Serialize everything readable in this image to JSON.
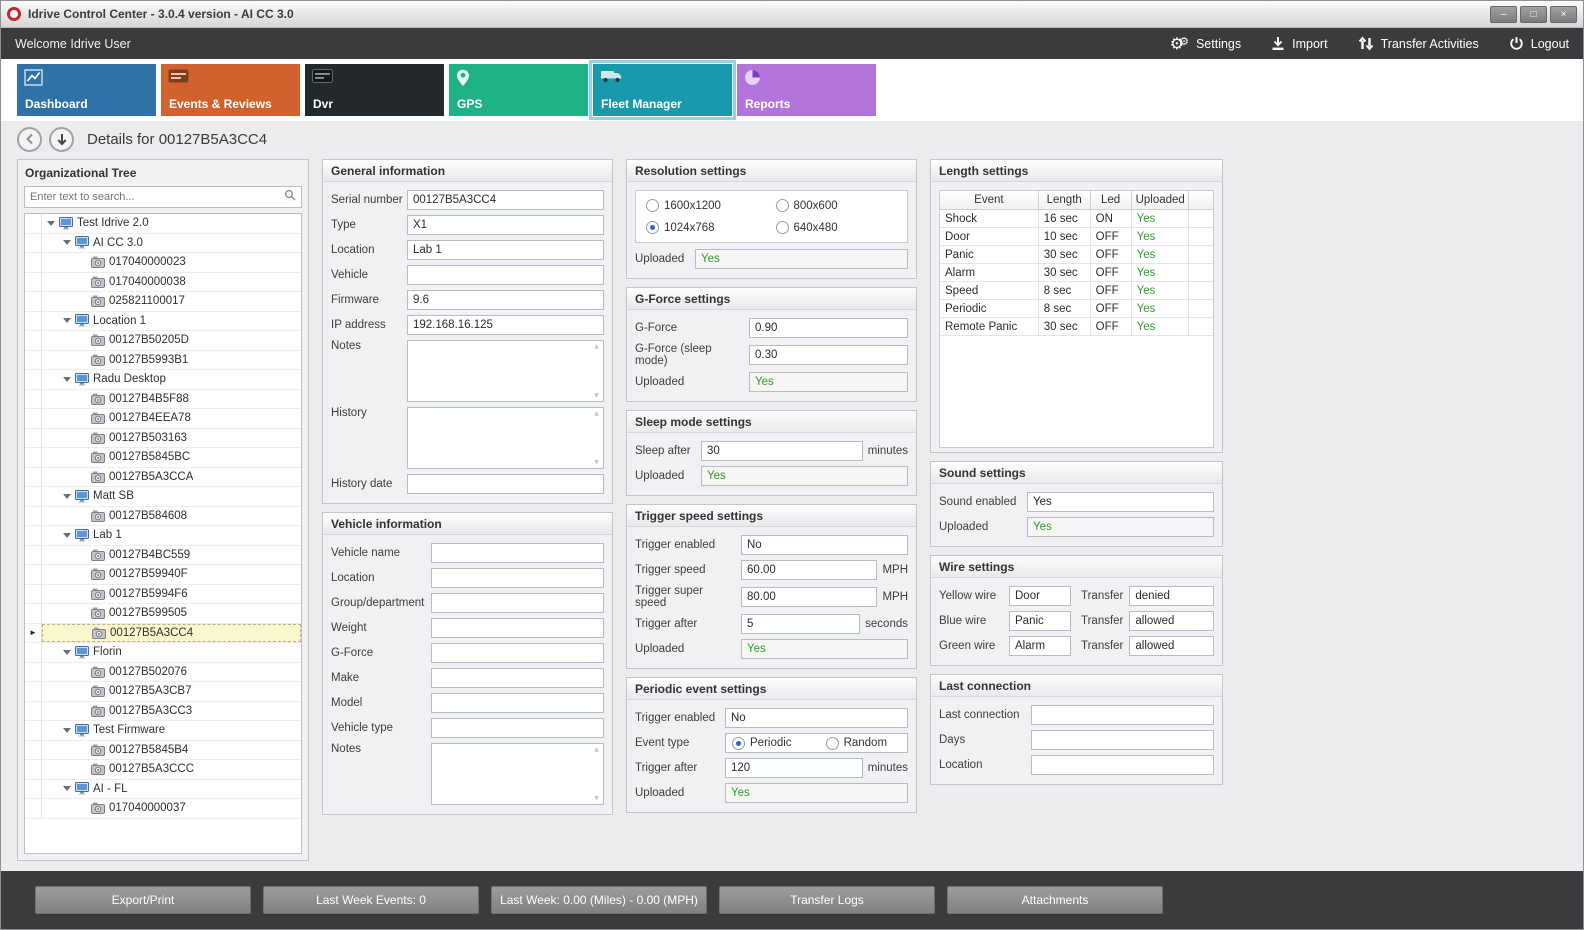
{
  "window": {
    "title": "Idrive Control Center - 3.0.4 version - AI CC 3.0",
    "controls": {
      "minimize": "–",
      "maximize": "□",
      "close": "×"
    }
  },
  "toolbar": {
    "welcome": "Welcome Idrive User",
    "actions": [
      {
        "id": "settings",
        "label": "Settings",
        "icon": "gears-icon"
      },
      {
        "id": "import",
        "label": "Import",
        "icon": "import-icon"
      },
      {
        "id": "transfer",
        "label": "Transfer Activities",
        "icon": "transfer-arrows-icon"
      },
      {
        "id": "logout",
        "label": "Logout",
        "icon": "power-icon"
      }
    ]
  },
  "tabs": [
    {
      "id": "dashboard",
      "label": "Dashboard",
      "color": "#2f72a8",
      "icon": "dashboard-chart-icon",
      "selected": false
    },
    {
      "id": "events",
      "label": "Events & Reviews",
      "color": "#d2622d",
      "icon": "events-icon",
      "selected": false
    },
    {
      "id": "dvr",
      "label": "Dvr",
      "color": "#23282c",
      "icon": "dvr-icon",
      "selected": false
    },
    {
      "id": "gps",
      "label": "GPS",
      "color": "#1fb286",
      "icon": "gps-pin-icon",
      "selected": false
    },
    {
      "id": "fleet",
      "label": "Fleet Manager",
      "color": "#1899ac",
      "icon": "fleet-truck-icon",
      "selected": true
    },
    {
      "id": "reports",
      "label": "Reports",
      "color": "#b274da",
      "icon": "reports-pie-icon",
      "selected": false
    }
  ],
  "details_header": {
    "title": "Details for 00127B5A3CC4"
  },
  "tree": {
    "title": "Organizational Tree",
    "search_placeholder": "Enter text to search...",
    "items": [
      {
        "label": "Test Idrive 2.0",
        "level": 0,
        "type": "group"
      },
      {
        "label": "AI CC 3.0",
        "level": 1,
        "type": "group"
      },
      {
        "label": "017040000023",
        "level": 2,
        "type": "device"
      },
      {
        "label": "017040000038",
        "level": 2,
        "type": "device"
      },
      {
        "label": "025821100017",
        "level": 2,
        "type": "device"
      },
      {
        "label": "Location 1",
        "level": 1,
        "type": "group"
      },
      {
        "label": "00127B50205D",
        "level": 2,
        "type": "device"
      },
      {
        "label": "00127B5993B1",
        "level": 2,
        "type": "device"
      },
      {
        "label": "Radu Desktop",
        "level": 1,
        "type": "group"
      },
      {
        "label": "00127B4B5F88",
        "level": 2,
        "type": "device"
      },
      {
        "label": "00127B4EEA78",
        "level": 2,
        "type": "device"
      },
      {
        "label": "00127B503163",
        "level": 2,
        "type": "device"
      },
      {
        "label": "00127B5845BC",
        "level": 2,
        "type": "device"
      },
      {
        "label": "00127B5A3CCA",
        "level": 2,
        "type": "device"
      },
      {
        "label": "Matt SB",
        "level": 1,
        "type": "group"
      },
      {
        "label": "00127B584608",
        "level": 2,
        "type": "device"
      },
      {
        "label": "Lab 1",
        "level": 1,
        "type": "group"
      },
      {
        "label": "00127B4BC559",
        "level": 2,
        "type": "device"
      },
      {
        "label": "00127B59940F",
        "level": 2,
        "type": "device"
      },
      {
        "label": "00127B5994F6",
        "level": 2,
        "type": "device"
      },
      {
        "label": "00127B599505",
        "level": 2,
        "type": "device"
      },
      {
        "label": "00127B5A3CC4",
        "level": 2,
        "type": "device",
        "selected": true
      },
      {
        "label": "Florin",
        "level": 1,
        "type": "group"
      },
      {
        "label": "00127B502076",
        "level": 2,
        "type": "device"
      },
      {
        "label": "00127B5A3CB7",
        "level": 2,
        "type": "device"
      },
      {
        "label": "00127B5A3CC3",
        "level": 2,
        "type": "device"
      },
      {
        "label": "Test Firmware",
        "level": 1,
        "type": "group"
      },
      {
        "label": "00127B5845B4",
        "level": 2,
        "type": "device"
      },
      {
        "label": "00127B5A3CCC",
        "level": 2,
        "type": "device"
      },
      {
        "label": "AI - FL",
        "level": 1,
        "type": "group"
      },
      {
        "label": "017040000037",
        "level": 2,
        "type": "device"
      }
    ]
  },
  "columns": {
    "col1": [
      {
        "id": "general",
        "title": "General information",
        "rows": [
          {
            "kind": "field",
            "label": "Serial number",
            "value": "00127B5A3CC4"
          },
          {
            "kind": "field",
            "label": "Type",
            "value": "X1"
          },
          {
            "kind": "field",
            "label": "Location",
            "value": "Lab 1"
          },
          {
            "kind": "field",
            "label": "Vehicle",
            "value": ""
          },
          {
            "kind": "field",
            "label": "Firmware",
            "value": "9.6"
          },
          {
            "kind": "field",
            "label": "IP address",
            "value": "192.168.16.125"
          },
          {
            "kind": "multiline",
            "label": "Notes",
            "value": ""
          },
          {
            "kind": "multiline",
            "label": "History",
            "value": ""
          },
          {
            "kind": "field",
            "label": "History date",
            "value": ""
          }
        ]
      },
      {
        "id": "vehicle",
        "title": "Vehicle information",
        "rows": [
          {
            "kind": "field",
            "label": "Vehicle name",
            "value": ""
          },
          {
            "kind": "field",
            "label": "Location",
            "value": ""
          },
          {
            "kind": "field",
            "label": "Group/department",
            "value": ""
          },
          {
            "kind": "field",
            "label": "Weight",
            "value": ""
          },
          {
            "kind": "field",
            "label": "G-Force",
            "value": ""
          },
          {
            "kind": "field",
            "label": "Make",
            "value": ""
          },
          {
            "kind": "field",
            "label": "Model",
            "value": ""
          },
          {
            "kind": "field",
            "label": "Vehicle type",
            "value": ""
          },
          {
            "kind": "multiline",
            "label": "Notes",
            "value": ""
          }
        ]
      }
    ],
    "col2": [
      {
        "id": "resolution",
        "title": "Resolution settings",
        "rows": [
          {
            "kind": "radios2",
            "options": [
              {
                "label": "1600x1200",
                "selected": false
              },
              {
                "label": "800x600",
                "selected": false
              },
              {
                "label": "1024x768",
                "selected": true
              },
              {
                "label": "640x480",
                "selected": false
              }
            ]
          },
          {
            "kind": "field",
            "label": "Uploaded",
            "value": "Yes",
            "green": true
          }
        ]
      },
      {
        "id": "gforce",
        "title": "G-Force settings",
        "rows": [
          {
            "kind": "field",
            "label": "G-Force",
            "value": "0.90"
          },
          {
            "kind": "field",
            "label": "G-Force (sleep mode)",
            "value": "0.30"
          },
          {
            "kind": "field",
            "label": "Uploaded",
            "value": "Yes",
            "green": true
          }
        ]
      },
      {
        "id": "sleep",
        "title": "Sleep mode settings",
        "rows": [
          {
            "kind": "field",
            "label": "Sleep after",
            "value": "30",
            "suffix": "minutes"
          },
          {
            "kind": "field",
            "label": "Uploaded",
            "value": "Yes",
            "green": true
          }
        ]
      },
      {
        "id": "trigger",
        "title": "Trigger speed settings",
        "rows": [
          {
            "kind": "field",
            "label": "Trigger enabled",
            "value": "No"
          },
          {
            "kind": "field",
            "label": "Trigger speed",
            "value": "60.00",
            "suffix": "MPH"
          },
          {
            "kind": "field",
            "label": "Trigger super speed",
            "value": "80.00",
            "suffix": "MPH"
          },
          {
            "kind": "field",
            "label": "Trigger after",
            "value": "5",
            "suffix": "seconds"
          },
          {
            "kind": "field",
            "label": "Uploaded",
            "value": "Yes",
            "green": true
          }
        ]
      },
      {
        "id": "periodic",
        "title": "Periodic event settings",
        "rows": [
          {
            "kind": "field",
            "label": "Trigger enabled",
            "value": "No"
          },
          {
            "kind": "radioinline",
            "label": "Event type",
            "options": [
              {
                "label": "Periodic",
                "selected": true
              },
              {
                "label": "Random",
                "selected": false
              }
            ]
          },
          {
            "kind": "field",
            "label": "Trigger after",
            "value": "120",
            "suffix": "minutes"
          },
          {
            "kind": "field",
            "label": "Uploaded",
            "value": "Yes",
            "green": true
          }
        ]
      }
    ],
    "col3": [
      {
        "id": "length",
        "title": "Length settings",
        "table": {
          "columns": [
            "Event",
            "Length",
            "Led",
            "Uploaded"
          ],
          "rows": [
            [
              "Shock",
              "16 sec",
              "ON",
              "Yes"
            ],
            [
              "Door",
              "10 sec",
              "OFF",
              "Yes"
            ],
            [
              "Panic",
              "30 sec",
              "OFF",
              "Yes"
            ],
            [
              "Alarm",
              "30 sec",
              "OFF",
              "Yes"
            ],
            [
              "Speed",
              "8 sec",
              "OFF",
              "Yes"
            ],
            [
              "Periodic",
              "8 sec",
              "OFF",
              "Yes"
            ],
            [
              "Remote Panic",
              "30 sec",
              "OFF",
              "Yes"
            ]
          ]
        }
      },
      {
        "id": "sound",
        "title": "Sound settings",
        "rows": [
          {
            "kind": "field",
            "label": "Sound enabled",
            "value": "Yes"
          },
          {
            "kind": "field",
            "label": "Uploaded",
            "value": "Yes",
            "green": true
          }
        ]
      },
      {
        "id": "wire",
        "title": "Wire settings",
        "rows": [
          {
            "kind": "wire",
            "label": "Yellow wire",
            "value": "Door",
            "label2": "Transfer",
            "value2": "denied"
          },
          {
            "kind": "wire",
            "label": "Blue wire",
            "value": "Panic",
            "label2": "Transfer",
            "value2": "allowed"
          },
          {
            "kind": "wire",
            "label": "Green wire",
            "value": "Alarm",
            "label2": "Transfer",
            "value2": "allowed"
          }
        ]
      },
      {
        "id": "lastconn",
        "title": "Last connection",
        "rows": [
          {
            "kind": "field",
            "label": "Last connection",
            "value": ""
          },
          {
            "kind": "field",
            "label": "Days",
            "value": ""
          },
          {
            "kind": "field",
            "label": "Location",
            "value": ""
          }
        ]
      }
    ]
  },
  "bottom_bar": {
    "buttons": [
      "Export/Print",
      "Last Week Events: 0",
      "Last Week: 0.00 (Miles) - 0.00 (MPH)",
      "Transfer Logs",
      "Attachments"
    ]
  },
  "colors": {
    "uploaded_green": "#2e9e2e",
    "dark_bar": "#3b3a3c",
    "selected_tab_outline": "#93d2e0"
  }
}
